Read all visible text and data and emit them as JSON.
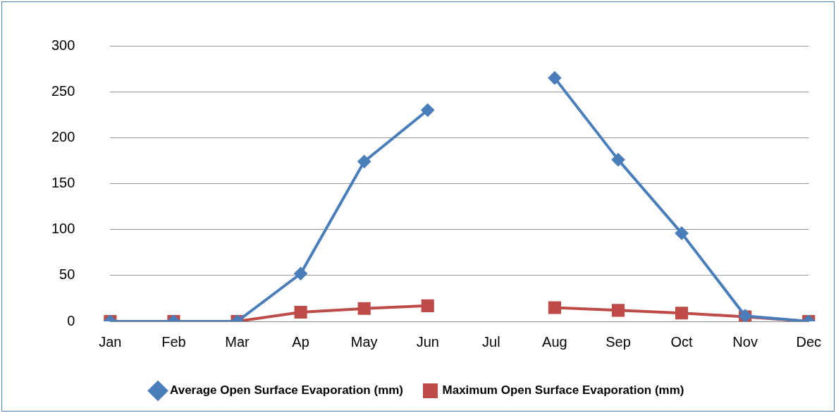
{
  "chart_data": {
    "type": "line",
    "categories": [
      "Jan",
      "Feb",
      "Mar",
      "Ap",
      "May",
      "Jun",
      "Jul",
      "Aug",
      "Sep",
      "Oct",
      "Nov",
      "Dec"
    ],
    "series": [
      {
        "name": "Average Open Surface Evaporation (mm)",
        "color": "#4a7ebb",
        "marker": "diamond",
        "values": [
          0,
          0,
          0,
          52,
          174,
          230,
          null,
          265,
          176,
          96,
          6,
          0
        ]
      },
      {
        "name": "Maximum Open Surface Evaporation (mm)",
        "color": "#be4b48",
        "marker": "square",
        "values": [
          0,
          0,
          0,
          10,
          14,
          17,
          null,
          15,
          12,
          9,
          5,
          0
        ]
      }
    ],
    "ylim": [
      0,
      300
    ],
    "yticks": [
      0,
      50,
      100,
      150,
      200,
      250,
      300
    ],
    "grid": "y",
    "legend": "bottom"
  }
}
